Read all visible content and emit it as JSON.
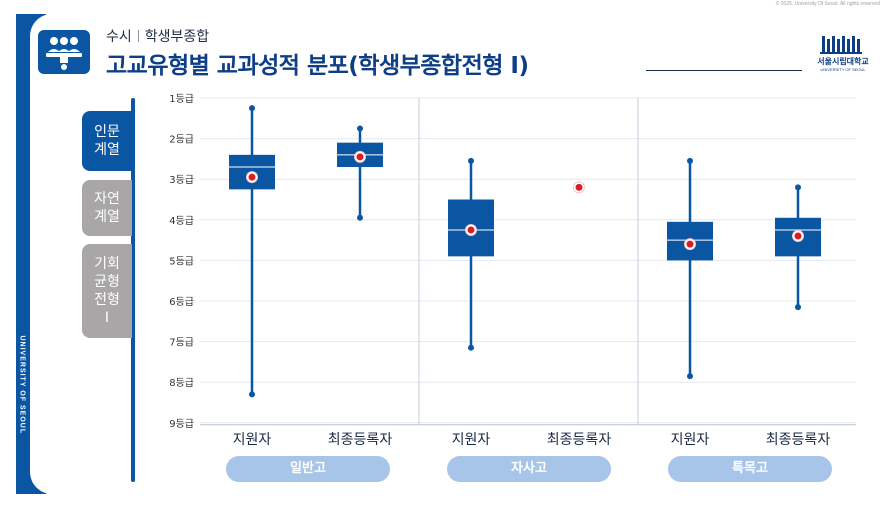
{
  "copyright": "© 2025. University Of Seoul. All rights reserved",
  "header": {
    "category": "수시",
    "subcategory": "학생부종합",
    "title": "고교유형별 교과성적 분포(학생부종합전형 I)"
  },
  "university": {
    "name_ko": "서울시립대학교",
    "name_en": "UNIVERSITY OF SEOUL",
    "vertical_text": "UNIVERSITY OF SEOUL"
  },
  "tabs": [
    {
      "label": "인문\n계열",
      "active": true
    },
    {
      "label": "자연\n계열",
      "active": false
    },
    {
      "label": "기회\n균형\n전형\nⅠ",
      "active": false
    }
  ],
  "colors": {
    "primary": "#0a56a3",
    "box": "#0a56a3",
    "mean_dot": "#d81f26",
    "pill": "#a6c5e8",
    "tab_inactive": "#a8a6a6",
    "grid": "#e4e8ee"
  },
  "chart_data": {
    "type": "boxplot",
    "y_ticks": [
      "1등급",
      "2등급",
      "3등급",
      "4등급",
      "5등급",
      "6등급",
      "7등급",
      "8등급",
      "9등급"
    ],
    "ylim": [
      1,
      9
    ],
    "y_inverted": true,
    "groups": [
      {
        "name": "일반고",
        "categories": [
          {
            "label": "지원자",
            "min": 1.25,
            "q1": 2.4,
            "median": 2.7,
            "q3": 3.25,
            "max": 8.3,
            "mean": 2.95
          },
          {
            "label": "최종등록자",
            "min": 1.75,
            "q1": 2.1,
            "median": 2.4,
            "q3": 2.7,
            "max": 3.95,
            "mean": 2.45
          }
        ]
      },
      {
        "name": "자사고",
        "categories": [
          {
            "label": "지원자",
            "min": 2.55,
            "q1": 3.5,
            "median": 4.25,
            "q3": 4.9,
            "max": 7.15,
            "mean": 4.25
          },
          {
            "label": "최종등록자",
            "mean": 3.2
          }
        ]
      },
      {
        "name": "특목고",
        "categories": [
          {
            "label": "지원자",
            "min": 2.55,
            "q1": 4.05,
            "median": 4.5,
            "q3": 5.0,
            "max": 7.85,
            "mean": 4.6
          },
          {
            "label": "최종등록자",
            "min": 3.2,
            "q1": 3.95,
            "median": 4.25,
            "q3": 4.9,
            "max": 6.15,
            "mean": 4.4
          }
        ]
      }
    ]
  }
}
